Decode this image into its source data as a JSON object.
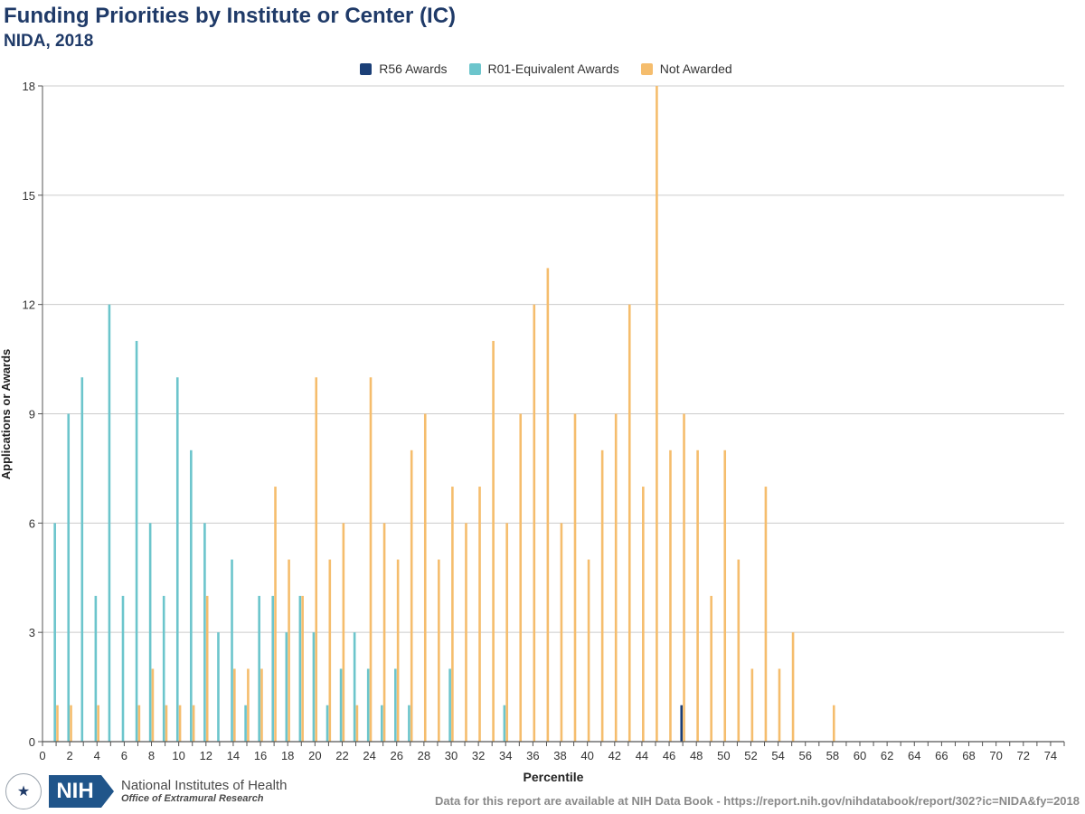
{
  "header": {
    "title": "Funding Priorities by Institute or Center (IC)",
    "subtitle": "NIDA, 2018"
  },
  "footer": {
    "org_name": "National Institutes of Health",
    "org_office": "Office of Extramural Research",
    "logo_text": "NIH",
    "source_note": "Data for this report are available at NIH Data Book - https://report.nih.gov/nihdatabook/report/302?ic=NIDA&fy=2018"
  },
  "colors": {
    "r56": "#1b3f77",
    "r01": "#6cc5cc",
    "not_awarded": "#f5bd6d",
    "grid": "#cccccc",
    "title": "#1f3a68"
  },
  "chart_data": {
    "type": "bar",
    "title": "Funding Priorities by Institute or Center (IC)",
    "subtitle": "NIDA, 2018",
    "xlabel": "Percentile",
    "ylabel": "Applications or Awards",
    "ylim": [
      0,
      18
    ],
    "yticks": [
      0,
      3,
      6,
      9,
      12,
      15,
      18
    ],
    "xlim": [
      0,
      75
    ],
    "xticks": [
      0,
      2,
      4,
      6,
      8,
      10,
      12,
      14,
      16,
      18,
      20,
      22,
      24,
      26,
      28,
      30,
      32,
      34,
      36,
      38,
      40,
      42,
      44,
      46,
      48,
      50,
      52,
      54,
      56,
      58,
      60,
      62,
      64,
      66,
      68,
      70,
      72,
      74
    ],
    "legend_position": "top-center",
    "series": [
      {
        "name": "R56 Awards",
        "color": "#1b3f77",
        "points": [
          [
            47,
            1
          ]
        ]
      },
      {
        "name": "R01-Equivalent Awards",
        "color": "#6cc5cc",
        "points": [
          [
            1,
            6
          ],
          [
            2,
            9
          ],
          [
            3,
            10
          ],
          [
            4,
            4
          ],
          [
            5,
            12
          ],
          [
            6,
            4
          ],
          [
            7,
            11
          ],
          [
            8,
            6
          ],
          [
            9,
            4
          ],
          [
            10,
            10
          ],
          [
            11,
            8
          ],
          [
            12,
            6
          ],
          [
            13,
            3
          ],
          [
            14,
            5
          ],
          [
            15,
            1
          ],
          [
            16,
            4
          ],
          [
            17,
            4
          ],
          [
            18,
            3
          ],
          [
            19,
            4
          ],
          [
            20,
            3
          ],
          [
            21,
            1
          ],
          [
            22,
            2
          ],
          [
            23,
            3
          ],
          [
            24,
            2
          ],
          [
            25,
            1
          ],
          [
            26,
            2
          ],
          [
            27,
            1
          ],
          [
            30,
            2
          ],
          [
            34,
            1
          ]
        ]
      },
      {
        "name": "Not Awarded",
        "color": "#f5bd6d",
        "points": [
          [
            1,
            1
          ],
          [
            2,
            1
          ],
          [
            4,
            1
          ],
          [
            7,
            1
          ],
          [
            8,
            2
          ],
          [
            9,
            1
          ],
          [
            10,
            1
          ],
          [
            11,
            1
          ],
          [
            12,
            4
          ],
          [
            14,
            2
          ],
          [
            15,
            2
          ],
          [
            16,
            2
          ],
          [
            17,
            7
          ],
          [
            18,
            5
          ],
          [
            19,
            4
          ],
          [
            20,
            10
          ],
          [
            21,
            5
          ],
          [
            22,
            6
          ],
          [
            23,
            1
          ],
          [
            24,
            10
          ],
          [
            25,
            6
          ],
          [
            26,
            5
          ],
          [
            27,
            8
          ],
          [
            28,
            9
          ],
          [
            29,
            5
          ],
          [
            30,
            7
          ],
          [
            31,
            6
          ],
          [
            32,
            7
          ],
          [
            33,
            11
          ],
          [
            34,
            6
          ],
          [
            35,
            9
          ],
          [
            36,
            12
          ],
          [
            37,
            13
          ],
          [
            38,
            6
          ],
          [
            39,
            9
          ],
          [
            40,
            5
          ],
          [
            41,
            8
          ],
          [
            42,
            9
          ],
          [
            43,
            12
          ],
          [
            44,
            7
          ],
          [
            45,
            18
          ],
          [
            46,
            8
          ],
          [
            47,
            9
          ],
          [
            48,
            8
          ],
          [
            49,
            4
          ],
          [
            50,
            8
          ],
          [
            51,
            5
          ],
          [
            52,
            2
          ],
          [
            53,
            7
          ],
          [
            54,
            2
          ],
          [
            55,
            3
          ],
          [
            58,
            1
          ]
        ]
      }
    ]
  }
}
